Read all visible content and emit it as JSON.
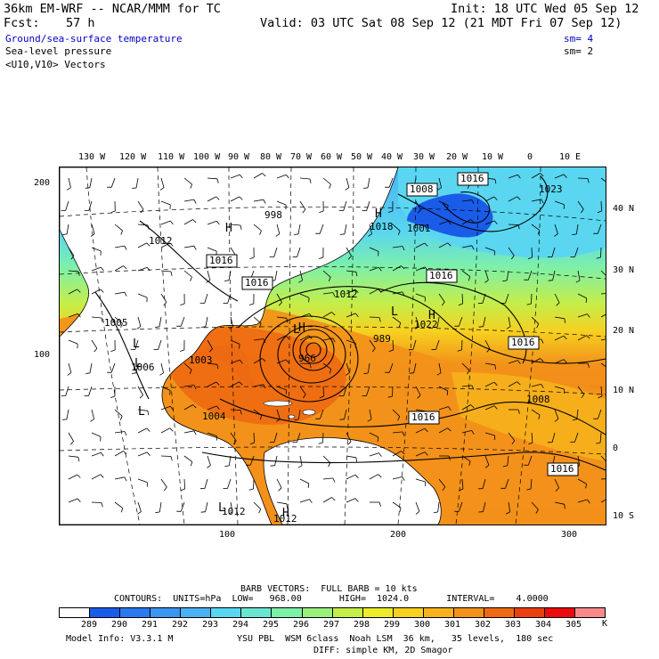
{
  "header": {
    "model": "36km EM-WRF -- NCAR/MMM for TC",
    "init": "Init: 18 UTC Wed 05 Sep 12",
    "fcst_label": "Fcst:",
    "fcst_value": "57 h",
    "valid": "Valid: 03 UTC Sat 08 Sep 12 (21 MDT Fri 07 Sep 12)"
  },
  "fields": [
    {
      "name": "Ground/sea-surface temperature",
      "sm": "sm= 4",
      "color": "#0000c8"
    },
    {
      "name": "Sea-level pressure",
      "sm": "sm= 2",
      "color": "#000000"
    },
    {
      "name": "<U10,V10> Vectors",
      "sm": "",
      "color": "#000000"
    }
  ],
  "top_axis": [
    "130 W",
    "120 W",
    "110 W",
    "100 W",
    "90 W",
    "80 W",
    "70 W",
    "60 W",
    "50 W",
    "40 W",
    "30 W",
    "20 W",
    "10 W",
    "0",
    "10 E"
  ],
  "right_axis": [
    "40 N",
    "30 N",
    "20 N",
    "10 N",
    "0",
    "10 S"
  ],
  "left_axis": [
    "200",
    "100"
  ],
  "bottom_axis": [
    "100",
    "200",
    "300"
  ],
  "pressure_labels": [
    {
      "text": "1008",
      "boxed": true
    },
    {
      "text": "1016",
      "boxed": true
    },
    {
      "text": "1023",
      "boxed": false
    },
    {
      "text": "1018",
      "boxed": false
    },
    {
      "text": "1001",
      "boxed": false
    },
    {
      "text": "1012",
      "boxed": false
    },
    {
      "text": "1016",
      "boxed": true
    },
    {
      "text": "1016",
      "boxed": true
    },
    {
      "text": "1016",
      "boxed": true
    },
    {
      "text": "1005",
      "boxed": false
    },
    {
      "text": "1012",
      "boxed": false
    },
    {
      "text": "989",
      "boxed": false
    },
    {
      "text": "1022",
      "boxed": false
    },
    {
      "text": "966",
      "boxed": false
    },
    {
      "text": "1003",
      "boxed": false
    },
    {
      "text": "1006",
      "boxed": false
    },
    {
      "text": "1016",
      "boxed": true
    },
    {
      "text": "1008",
      "boxed": false
    },
    {
      "text": "1016",
      "boxed": true
    },
    {
      "text": "1016",
      "boxed": true
    },
    {
      "text": "1012",
      "boxed": false
    },
    {
      "text": "1004",
      "boxed": false
    },
    {
      "text": "1012",
      "boxed": false
    },
    {
      "text": "998",
      "boxed": false
    }
  ],
  "pressure_centers": [
    {
      "type": "H"
    },
    {
      "type": "H"
    },
    {
      "type": "H"
    },
    {
      "type": "L"
    },
    {
      "type": "L"
    },
    {
      "type": "L"
    },
    {
      "type": "L"
    },
    {
      "type": "L"
    },
    {
      "type": "H"
    },
    {
      "type": "L"
    },
    {
      "type": "H"
    }
  ],
  "footer": {
    "barb": "BARB VECTORS:  FULL BARB = 10 kts",
    "contours": "CONTOURS:  UNITS=hPa  LOW=   968.00       HIGH=  1024.0       INTERVAL=    4.0000",
    "colorbar_labels": [
      "289",
      "290",
      "291",
      "292",
      "293",
      "294",
      "295",
      "296",
      "297",
      "298",
      "299",
      "300",
      "301",
      "302",
      "303",
      "304",
      "305"
    ],
    "colorbar_unit": "K",
    "colorbar_colors": [
      "#ffffff",
      "#1a5ce8",
      "#2a7aee",
      "#3a96f0",
      "#4ab2f2",
      "#5ad6f0",
      "#6ae6d0",
      "#7ef0a8",
      "#9af07c",
      "#c4ee4a",
      "#ecec2a",
      "#f7d020",
      "#f6b21c",
      "#f2921a",
      "#ee6a12",
      "#ea4010",
      "#ea0c0c",
      "#f88a8a"
    ],
    "model_info": "Model Info: V3.3.1 M",
    "physics1": "YSU PBL  WSM 6class  Noah LSM  36 km,   35 levels,  180 sec",
    "physics2": "DIFF: simple KM, 2D Smagor"
  }
}
